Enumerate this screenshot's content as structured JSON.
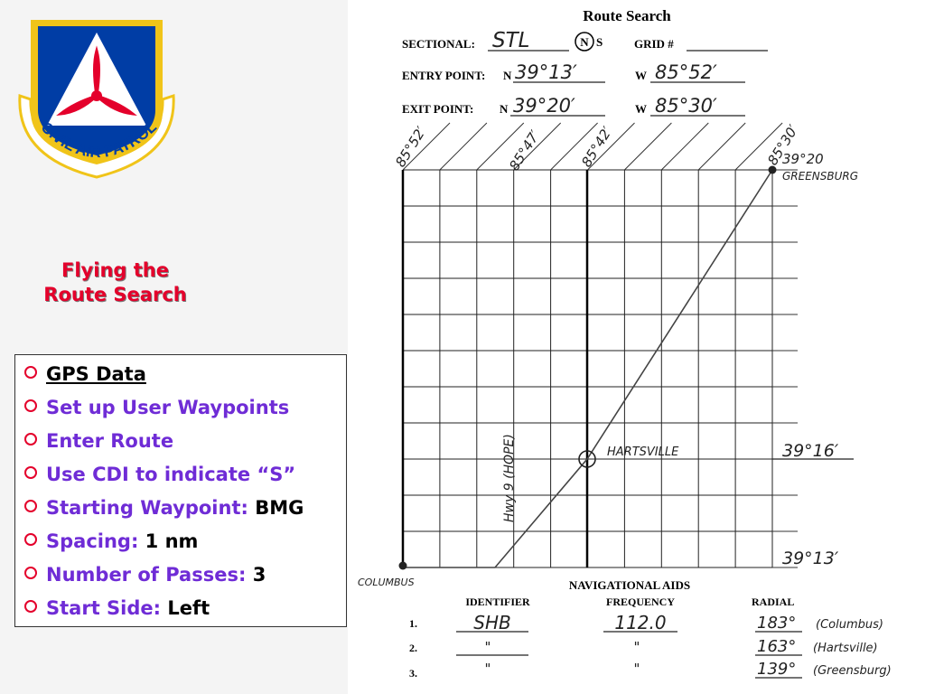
{
  "logo": {
    "text": "CIVIL AIR PATROL",
    "colors": {
      "shield": "#003da5",
      "border": "#f0c419",
      "triangle": "#ffffff",
      "propeller": "#e4002b"
    }
  },
  "subtitle": {
    "line1": "Flying the",
    "line2": "Route Search"
  },
  "bullets": [
    {
      "label": "GPS Data",
      "value": ""
    },
    {
      "label": "Set up User Waypoints",
      "value": ""
    },
    {
      "label": "Enter Route",
      "value": ""
    },
    {
      "label": "Use CDI to indicate “S”",
      "value": ""
    },
    {
      "label": "Starting Waypoint:",
      "value": "BMG"
    },
    {
      "label": "Spacing:",
      "value": "1 nm"
    },
    {
      "label": "Number of Passes:",
      "value": "3"
    },
    {
      "label": "Start Side:",
      "value": "Left"
    }
  ],
  "form": {
    "title": "Route Search",
    "sectional_label": "SECTIONAL:",
    "sectional_value": "STL",
    "n_mark": "N",
    "s_mark": "S",
    "grid_label": "GRID #",
    "entry_label": "ENTRY POINT:",
    "exit_label": "EXIT POINT:",
    "n_prefix": "N",
    "w_prefix": "W",
    "entry_n": "39°13′",
    "entry_w": "85°52′",
    "exit_n": "39°20′",
    "exit_w": "85°30′"
  },
  "grid": {
    "top_labels": [
      "85°52′",
      "85°47′",
      "85°42′",
      "85°30′"
    ],
    "right_labels": [
      "39°16′",
      "39°13′"
    ],
    "endpoint_label_lat": "39°20",
    "endpoint_label_town": "GREENSBURG",
    "mid_label": "HARTSVILLE",
    "start_label": "COLUMBUS",
    "road_label": "Hwy 9 (HOPE)"
  },
  "nav_aids": {
    "title": "NAVIGATIONAL AIDS",
    "headers": [
      "IDENTIFIER",
      "FREQUENCY",
      "RADIAL"
    ],
    "rows": [
      {
        "num": "1.",
        "identifier": "SHB",
        "frequency": "112.0",
        "radial": "183°",
        "place": "(Columbus)"
      },
      {
        "num": "2.",
        "identifier": "\"",
        "frequency": "\"",
        "radial": "163°",
        "place": "(Hartsville)"
      },
      {
        "num": "3.",
        "identifier": "\"",
        "frequency": "\"",
        "radial": "139°",
        "place": "(Greensburg)"
      }
    ]
  }
}
